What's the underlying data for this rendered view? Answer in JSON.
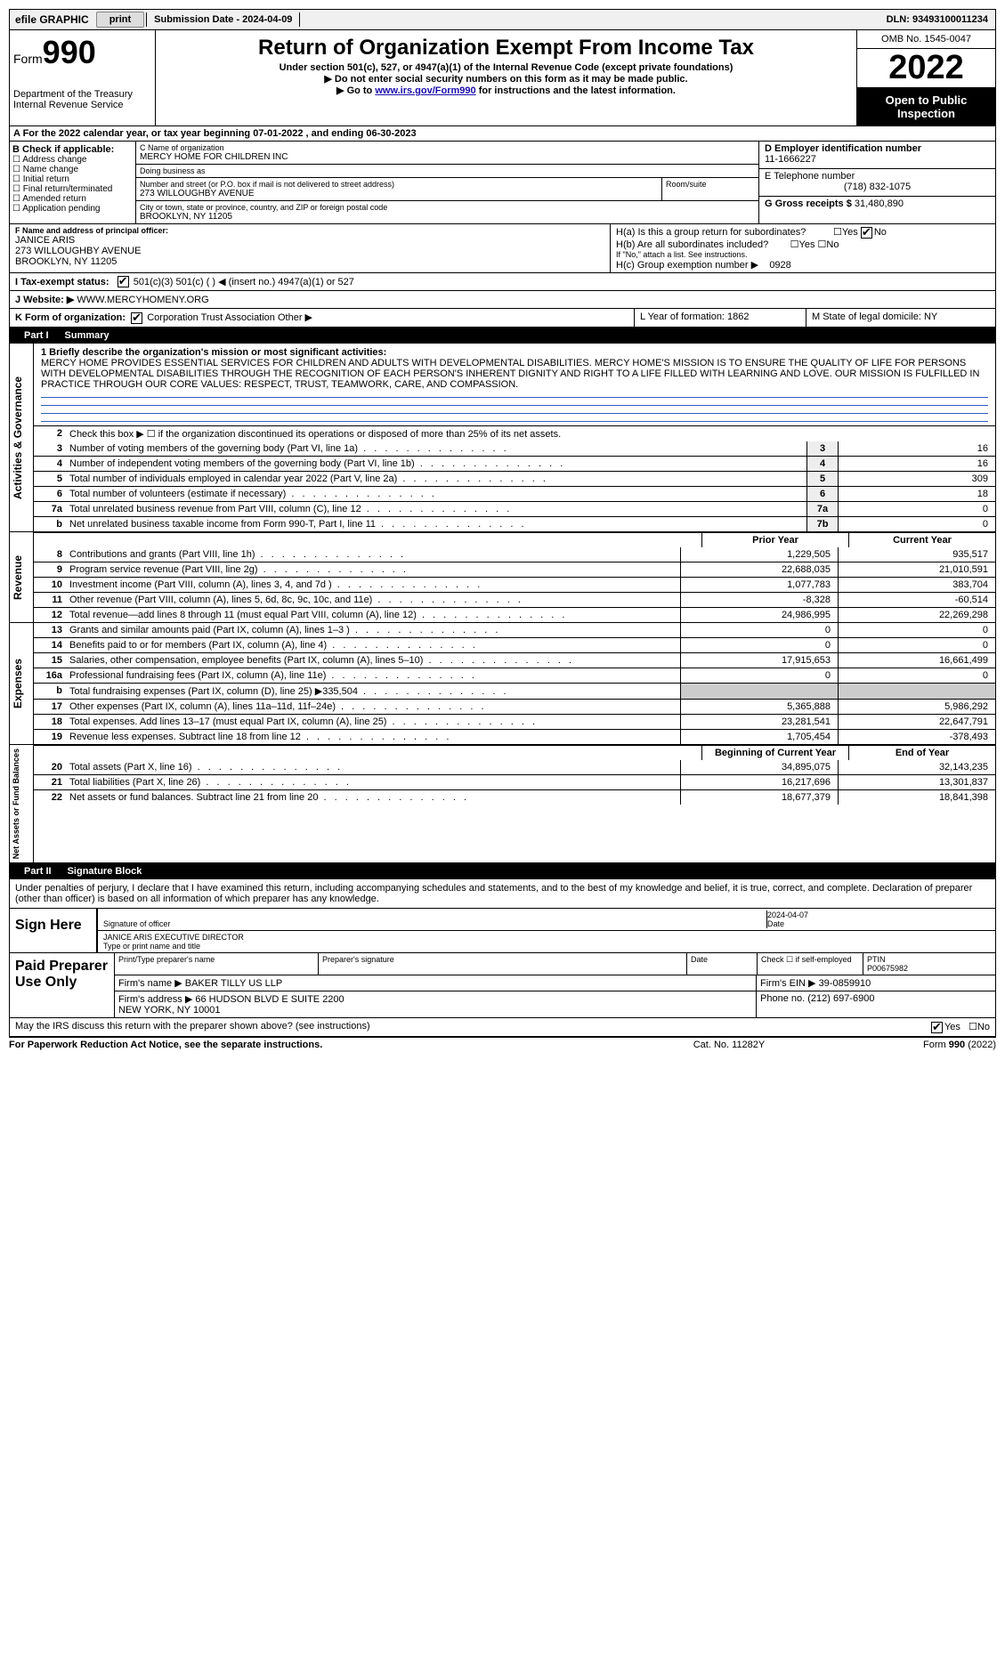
{
  "top": {
    "efile": "efile GRAPHIC",
    "print": "print",
    "submission": "Submission Date - 2024-04-09",
    "dln": "DLN: 93493100011234"
  },
  "header": {
    "form_label": "Form",
    "form_num": "990",
    "dept": "Department of the Treasury\nInternal Revenue Service",
    "title": "Return of Organization Exempt From Income Tax",
    "subtitle": "Under section 501(c), 527, or 4947(a)(1) of the Internal Revenue Code (except private foundations)",
    "note1": "▶ Do not enter social security numbers on this form as it may be made public.",
    "note2_pre": "▶ Go to ",
    "note2_link": "www.irs.gov/Form990",
    "note2_post": " for instructions and the latest information.",
    "omb": "OMB No. 1545-0047",
    "year": "2022",
    "open": "Open to Public Inspection"
  },
  "row_a": "A For the 2022 calendar year, or tax year beginning 07-01-2022    , and ending 06-30-2023",
  "section_b": {
    "title": "B Check if applicable:",
    "opts": [
      "Address change",
      "Name change",
      "Initial return",
      "Final return/terminated",
      "Amended return",
      "Application pending"
    ]
  },
  "section_c": {
    "label_name": "C Name of organization",
    "org_name": "MERCY HOME FOR CHILDREN INC",
    "dba_label": "Doing business as",
    "dba": "",
    "addr_label": "Number and street (or P.O. box if mail is not delivered to street address)",
    "addr": "273 WILLOUGHBY AVENUE",
    "room_label": "Room/suite",
    "city_label": "City or town, state or province, country, and ZIP or foreign postal code",
    "city": "BROOKLYN, NY  11205"
  },
  "section_d": {
    "label": "D Employer identification number",
    "value": "11-1666227"
  },
  "section_e": {
    "label": "E Telephone number",
    "value": "(718) 832-1075"
  },
  "section_g": {
    "label": "G Gross receipts $",
    "value": "31,480,890"
  },
  "section_f": {
    "label": "F Name and address of principal officer:",
    "name": "JANICE ARIS",
    "addr": "273 WILLOUGHBY AVENUE\nBROOKLYN, NY  11205"
  },
  "section_h": {
    "ha": "H(a)  Is this a group return for subordinates?",
    "hb": "H(b)  Are all subordinates included?",
    "hb_note": "If \"No,\" attach a list. See instructions.",
    "hc": "H(c)  Group exemption number ▶",
    "hc_val": "0928"
  },
  "row_i": "I   Tax-exempt status:",
  "row_i_opts": "501(c)(3)      501(c) (  ) ◀ (insert no.)       4947(a)(1) or      527",
  "row_j_label": "J   Website: ▶",
  "row_j_val": "WWW.MERCYHOMENY.ORG",
  "row_k_label": "K Form of organization:",
  "row_k_opts": "Corporation      Trust      Association      Other ▶",
  "row_l": "L Year of formation: 1862",
  "row_m": "M State of legal domicile: NY",
  "part1": {
    "label": "Part I",
    "title": "Summary"
  },
  "mission_label": "1  Briefly describe the organization's mission or most significant activities:",
  "mission": "MERCY HOME PROVIDES ESSENTIAL SERVICES FOR CHILDREN AND ADULTS WITH DEVELOPMENTAL DISABILITIES. MERCY HOME'S MISSION IS TO ENSURE THE QUALITY OF LIFE FOR PERSONS WITH DEVELOPMENTAL DISABILITIES THROUGH THE RECOGNITION OF EACH PERSON'S INHERENT DIGNITY AND RIGHT TO A LIFE FILLED WITH LEARNING AND LOVE. OUR MISSION IS FULFILLED IN PRACTICE THROUGH OUR CORE VALUES: RESPECT, TRUST, TEAMWORK, CARE, AND COMPASSION.",
  "line2": "Check this box ▶ ☐  if the organization discontinued its operations or disposed of more than 25% of its net assets.",
  "gov_lines": [
    {
      "n": "3",
      "t": "Number of voting members of the governing body (Part VI, line 1a)",
      "c": "3",
      "v": "16"
    },
    {
      "n": "4",
      "t": "Number of independent voting members of the governing body (Part VI, line 1b)",
      "c": "4",
      "v": "16"
    },
    {
      "n": "5",
      "t": "Total number of individuals employed in calendar year 2022 (Part V, line 2a)",
      "c": "5",
      "v": "309"
    },
    {
      "n": "6",
      "t": "Total number of volunteers (estimate if necessary)",
      "c": "6",
      "v": "18"
    },
    {
      "n": "7a",
      "t": "Total unrelated business revenue from Part VIII, column (C), line 12",
      "c": "7a",
      "v": "0"
    },
    {
      "n": "b",
      "t": "Net unrelated business taxable income from Form 990-T, Part I, line 11",
      "c": "7b",
      "v": "0"
    }
  ],
  "colheads": {
    "prior": "Prior Year",
    "current": "Current Year",
    "beg": "Beginning of Current Year",
    "end": "End of Year"
  },
  "revenue": [
    {
      "n": "8",
      "t": "Contributions and grants (Part VIII, line 1h)",
      "p": "1,229,505",
      "c": "935,517"
    },
    {
      "n": "9",
      "t": "Program service revenue (Part VIII, line 2g)",
      "p": "22,688,035",
      "c": "21,010,591"
    },
    {
      "n": "10",
      "t": "Investment income (Part VIII, column (A), lines 3, 4, and 7d )",
      "p": "1,077,783",
      "c": "383,704"
    },
    {
      "n": "11",
      "t": "Other revenue (Part VIII, column (A), lines 5, 6d, 8c, 9c, 10c, and 11e)",
      "p": "-8,328",
      "c": "-60,514"
    },
    {
      "n": "12",
      "t": "Total revenue—add lines 8 through 11 (must equal Part VIII, column (A), line 12)",
      "p": "24,986,995",
      "c": "22,269,298"
    }
  ],
  "expenses": [
    {
      "n": "13",
      "t": "Grants and similar amounts paid (Part IX, column (A), lines 1–3 )",
      "p": "0",
      "c": "0"
    },
    {
      "n": "14",
      "t": "Benefits paid to or for members (Part IX, column (A), line 4)",
      "p": "0",
      "c": "0"
    },
    {
      "n": "15",
      "t": "Salaries, other compensation, employee benefits (Part IX, column (A), lines 5–10)",
      "p": "17,915,653",
      "c": "16,661,499"
    },
    {
      "n": "16a",
      "t": "Professional fundraising fees (Part IX, column (A), line 11e)",
      "p": "0",
      "c": "0"
    },
    {
      "n": "b",
      "t": "Total fundraising expenses (Part IX, column (D), line 25) ▶335,504",
      "p": "",
      "c": "",
      "shade": true
    },
    {
      "n": "17",
      "t": "Other expenses (Part IX, column (A), lines 11a–11d, 11f–24e)",
      "p": "5,365,888",
      "c": "5,986,292"
    },
    {
      "n": "18",
      "t": "Total expenses. Add lines 13–17 (must equal Part IX, column (A), line 25)",
      "p": "23,281,541",
      "c": "22,647,791"
    },
    {
      "n": "19",
      "t": "Revenue less expenses. Subtract line 18 from line 12",
      "p": "1,705,454",
      "c": "-378,493"
    }
  ],
  "netassets": [
    {
      "n": "20",
      "t": "Total assets (Part X, line 16)",
      "p": "34,895,075",
      "c": "32,143,235"
    },
    {
      "n": "21",
      "t": "Total liabilities (Part X, line 26)",
      "p": "16,217,696",
      "c": "13,301,837"
    },
    {
      "n": "22",
      "t": "Net assets or fund balances. Subtract line 21 from line 20",
      "p": "18,677,379",
      "c": "18,841,398"
    }
  ],
  "part2": {
    "label": "Part II",
    "title": "Signature Block"
  },
  "penalties": "Under penalties of perjury, I declare that I have examined this return, including accompanying schedules and statements, and to the best of my knowledge and belief, it is true, correct, and complete. Declaration of preparer (other than officer) is based on all information of which preparer has any knowledge.",
  "sign": {
    "label": "Sign Here",
    "sig_officer": "Signature of officer",
    "date": "2024-04-07",
    "date_lbl": "Date",
    "name": "JANICE ARIS  EXECUTIVE DIRECTOR",
    "name_lbl": "Type or print name and title"
  },
  "prep": {
    "label": "Paid Preparer Use Only",
    "h1": "Print/Type preparer's name",
    "h2": "Preparer's signature",
    "h3": "Date",
    "h4": "Check ☐ if self-employed",
    "h5_lbl": "PTIN",
    "h5": "P00675982",
    "firm_lbl": "Firm's name    ▶",
    "firm": "BAKER TILLY US LLP",
    "ein_lbl": "Firm's EIN ▶",
    "ein": "39-0859910",
    "addr_lbl": "Firm's address ▶",
    "addr": "66 HUDSON BLVD E SUITE 2200\nNEW YORK, NY  10001",
    "phone_lbl": "Phone no.",
    "phone": "(212) 697-6900"
  },
  "may_discuss": "May the IRS discuss this return with the preparer shown above? (see instructions)",
  "footer": {
    "l": "For Paperwork Reduction Act Notice, see the separate instructions.",
    "c": "Cat. No. 11282Y",
    "r_pre": "Form ",
    "r_bold": "990",
    "r_post": " (2022)"
  },
  "vtabs": {
    "gov": "Activities & Governance",
    "rev": "Revenue",
    "exp": "Expenses",
    "net": "Net Assets or Fund Balances"
  }
}
